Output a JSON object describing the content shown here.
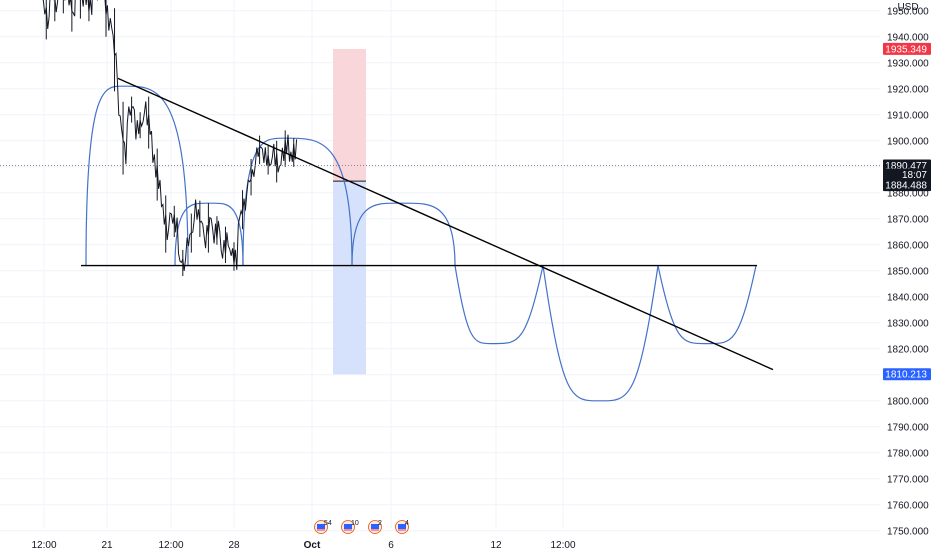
{
  "header": {
    "currency": "USD"
  },
  "colors": {
    "background": "#ffffff",
    "price_line": "#131722",
    "arc_blue": "#4472ca",
    "trendline": "#000000",
    "stop_zone": "#f9d6d9",
    "target_zone": "#d6e2fb",
    "badge_red": "#f23645",
    "badge_black": "#131722",
    "badge_blue": "#2962ff",
    "grid": "#f0f3fa"
  },
  "events": [
    {
      "icon": "us-flag-event-icon",
      "count": "54"
    },
    {
      "icon": "us-flag-event-icon",
      "count": "10"
    },
    {
      "icon": "us-flag-event-icon",
      "count": "2"
    },
    {
      "icon": "us-flag-event-icon",
      "count": "4"
    }
  ],
  "chart_data": {
    "type": "line",
    "title": "",
    "xlabel": "",
    "ylabel": "",
    "y_axis": {
      "ylim": [
        1746,
        1972
      ],
      "ticks": [
        "1750.000",
        "1760.000",
        "1770.000",
        "1780.000",
        "1790.000",
        "1800.000",
        "1810.000",
        "1820.000",
        "1830.000",
        "1840.000",
        "1850.000",
        "1860.000",
        "1870.000",
        "1880.000",
        "1890.000",
        "1900.000",
        "1910.000",
        "1920.000",
        "1930.000",
        "1940.000",
        "1950.000"
      ],
      "partial_top_tick": "19",
      "grid": true
    },
    "x_axis": {
      "ticks": [
        "12:00",
        "21",
        "12:00",
        "28",
        "Oct",
        "6",
        "12",
        "12:00"
      ],
      "grid": true
    },
    "price_badges": [
      {
        "value": "1935.349",
        "style": "red"
      },
      {
        "value": "1890.477",
        "style": "black"
      },
      {
        "value": "18:07",
        "style": "black"
      },
      {
        "value": "1884.488",
        "style": "black"
      },
      {
        "value": "1810.213",
        "style": "blue"
      }
    ],
    "series": [
      {
        "values": [
          [
            1955,
            1942
          ],
          [
            1958,
            1949
          ],
          [
            1962,
            1952
          ],
          [
            1957,
            1945
          ],
          [
            1963,
            1950
          ],
          [
            1957,
            1949
          ],
          [
            1966,
            1957
          ],
          [
            1960,
            1943
          ],
          [
            1948,
            1922
          ],
          [
            1912,
            1890
          ],
          [
            1910,
            1914
          ],
          [
            1904,
            1908
          ],
          [
            1914,
            1900
          ],
          [
            1894,
            1880
          ],
          [
            1876,
            1860
          ],
          [
            1872,
            1866
          ],
          [
            1855,
            1851
          ],
          [
            1860,
            1869
          ],
          [
            1874,
            1866
          ],
          [
            1860,
            1873
          ],
          [
            1863,
            1868
          ],
          [
            1856,
            1864
          ],
          [
            1858,
            1853
          ],
          [
            1869,
            1878
          ],
          [
            1882,
            1890
          ],
          [
            1894,
            1899
          ],
          [
            1895,
            1890
          ],
          [
            1897,
            1887
          ],
          [
            1893,
            1901
          ],
          [
            1893,
            1898
          ]
        ]
      }
    ],
    "drawings": {
      "support_level": 1852,
      "descending_trendline": {
        "start": 1924,
        "end": 1812
      },
      "stop_zone": [
        1884.5,
        1935.3
      ],
      "target_zone": [
        1810.2,
        1884.5
      ],
      "last_price": 1890.477,
      "projected_arc_levels": [
        1921,
        1876,
        1876,
        1901,
        1876,
        1852,
        1822,
        1852,
        1800,
        1852,
        1822,
        1852
      ]
    }
  }
}
